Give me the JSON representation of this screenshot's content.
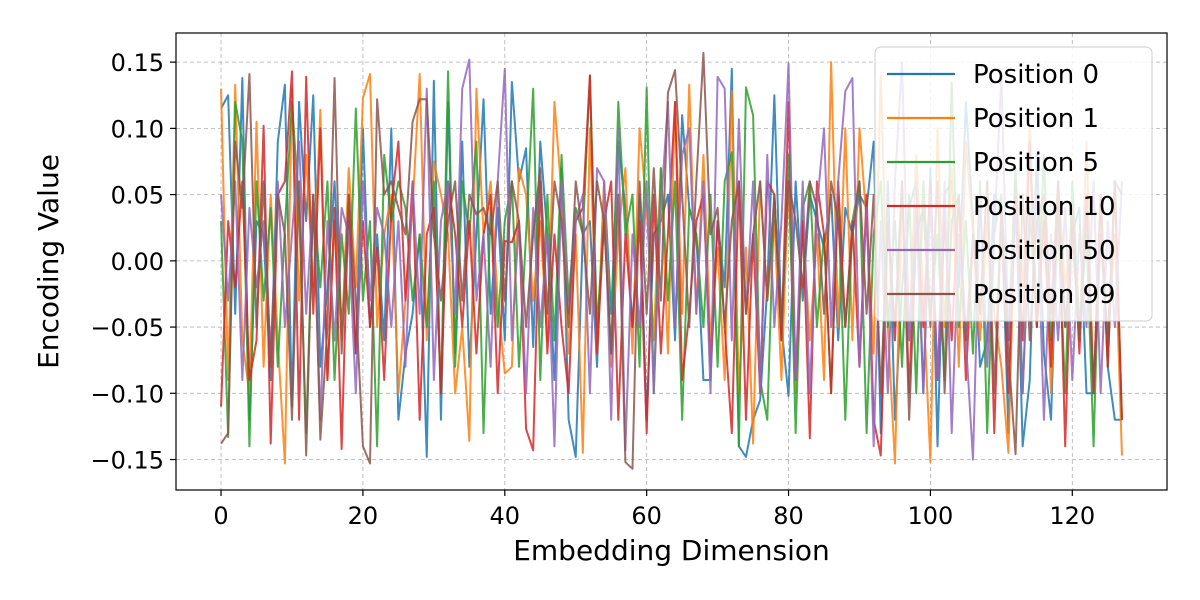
{
  "chart_data": {
    "type": "line",
    "title": "",
    "xlabel": "Embedding Dimension",
    "ylabel": "Encoding Value",
    "xlim": [
      -6.35,
      133.35
    ],
    "ylim": [
      -0.173,
      0.172
    ],
    "xticks": [
      0,
      20,
      40,
      60,
      80,
      100,
      120
    ],
    "yticks": [
      -0.15,
      -0.1,
      -0.05,
      0.0,
      0.05,
      0.1,
      0.15
    ],
    "ytick_labels": [
      "−0.15",
      "−0.10",
      "−0.05",
      "0.00",
      "0.05",
      "0.10",
      "0.15"
    ],
    "grid": true,
    "legend_position": "top-right",
    "series": [
      {
        "name": "Position 0",
        "color": "#1f77b4",
        "values": [
          0.115,
          0.125,
          -0.04,
          0.138,
          -0.12,
          0.03,
          0.02,
          -0.09,
          0.09,
          0.133,
          -0.11,
          0.12,
          0.03,
          0.125,
          -0.08,
          -0.02,
          0.06,
          -0.05,
          0.03,
          -0.07,
          0.1,
          -0.05,
          0.02,
          -0.06,
          0.1,
          -0.12,
          -0.07,
          -0.04,
          0.02,
          -0.148,
          0.136,
          -0.12,
          0.12,
          -0.07,
          0.09,
          -0.08,
          0.02,
          0.122,
          -0.04,
          0.04,
          -0.06,
          0.135,
          0.06,
          0.085,
          -0.065,
          0.09,
          0.02,
          -0.09,
          0.07,
          -0.12,
          -0.148,
          0.02,
          0.03,
          -0.08,
          0.06,
          -0.04,
          0.09,
          0.04,
          -0.05,
          0.05,
          -0.12,
          0.02,
          0.03,
          0.05,
          -0.06,
          0.11,
          0.04,
          0.02,
          -0.09,
          -0.09,
          0.03,
          -0.02,
          0.145,
          -0.14,
          -0.148,
          -0.12,
          -0.105,
          -0.02,
          0.125,
          -0.05,
          -0.102,
          0.06,
          -0.03,
          0.05,
          0.03,
          0.01,
          0.05,
          -0.06,
          0.04,
          0.02,
          0.05,
          0.04,
          0.09,
          -0.13,
          0.06,
          -0.12,
          -0.02,
          0.04,
          0.06,
          -0.1,
          0.07,
          -0.14,
          0.05,
          0.06,
          -0.02,
          0.12,
          0.03,
          -0.08,
          -0.06,
          0.05,
          0.04,
          -0.13,
          0.06,
          -0.14,
          -0.09,
          0.08,
          -0.07,
          -0.12,
          0.05,
          -0.05,
          0.02,
          0.04,
          -0.1,
          -0.1,
          0.05,
          -0.08,
          -0.12,
          -0.12
        ]
      },
      {
        "name": "Position 1",
        "color": "#ff7f0e",
        "values": [
          0.13,
          -0.09,
          0.133,
          -0.06,
          -0.1,
          0.105,
          -0.08,
          0.05,
          -0.06,
          -0.153,
          0.13,
          -0.03,
          0.08,
          -0.02,
          0.114,
          -0.09,
          0.03,
          -0.06,
          0.07,
          -0.02,
          0.123,
          0.141,
          -0.05,
          0.02,
          0.05,
          -0.1,
          -0.03,
          0.04,
          0.141,
          -0.06,
          0.075,
          0.05,
          0.02,
          -0.1,
          -0.05,
          -0.136,
          0.13,
          0.02,
          0.06,
          -0.03,
          -0.085,
          -0.08,
          0.07,
          0.05,
          -0.03,
          0.03,
          -0.06,
          0.12,
          0.05,
          -0.07,
          0.02,
          -0.145,
          0.1,
          -0.07,
          0.06,
          -0.08,
          0.02,
          0.07,
          -0.07,
          0.1,
          0.04,
          -0.06,
          0.07,
          -0.07,
          0.12,
          -0.04,
          0.133,
          -0.04,
          0.08,
          -0.06,
          0.01,
          -0.09,
          0.128,
          -0.1,
          0.01,
          -0.138,
          0.06,
          -0.03,
          0.03,
          -0.09,
          0.06,
          -0.1,
          0.03,
          -0.06,
          0.02,
          -0.09,
          0.15,
          -0.05,
          0.1,
          -0.06,
          0.1,
          0.03,
          -0.07,
          0.14,
          -0.05,
          -0.153,
          0.05,
          -0.06,
          0.08,
          -0.03,
          -0.152,
          0.1,
          -0.05,
          0.07,
          -0.08,
          0.09,
          0.02,
          -0.06,
          0.03,
          -0.04,
          -0.08,
          -0.145,
          0.06,
          -0.02,
          0.1,
          -0.05,
          0.04,
          -0.1,
          0.06,
          -0.02,
          0.03,
          -0.06,
          0.09,
          -0.1,
          0.02,
          -0.06,
          0.02,
          -0.147
        ]
      },
      {
        "name": "Position 5",
        "color": "#2ca02c",
        "values": [
          0.03,
          -0.133,
          0.12,
          0.09,
          -0.14,
          0.06,
          -0.03,
          0.04,
          -0.08,
          0.025,
          0.12,
          0.04,
          -0.13,
          0.05,
          -0.02,
          0.06,
          -0.09,
          0.02,
          -0.04,
          0.115,
          -0.03,
          0.03,
          -0.14,
          0.08,
          0.03,
          0.06,
          0.04,
          -0.03,
          0.02,
          -0.05,
          0.06,
          -0.1,
          0.143,
          -0.08,
          0.06,
          0.02,
          0.09,
          -0.13,
          0.04,
          -0.05,
          0.03,
          0.06,
          -0.08,
          0.02,
          0.13,
          -0.09,
          0.05,
          -0.06,
          0.08,
          -0.03,
          0.04,
          0.02,
          0.14,
          -0.05,
          0.03,
          -0.07,
          0.12,
          0.02,
          0.05,
          -0.08,
          0.131,
          -0.1,
          0.07,
          -0.03,
          0.06,
          -0.12,
          0.04,
          0.02,
          -0.05,
          0.05,
          -0.08,
          0.06,
          0.082,
          -0.14,
          0.131,
          0.11,
          -0.09,
          -0.12,
          0.05,
          -0.06,
          0.08,
          -0.13,
          0.04,
          0.06,
          -0.05,
          0.02,
          -0.1,
          0.05,
          -0.12,
          0.03,
          0.06,
          -0.13,
          0.02,
          0.06,
          -0.05,
          0.03,
          -0.08,
          0.05,
          -0.1,
          0.06,
          -0.04,
          0.02,
          -0.09,
          0.135,
          -0.05,
          0.03,
          -0.07,
          0.06,
          -0.13,
          0.02,
          0.05,
          -0.06,
          0.07,
          -0.1,
          0.04,
          -0.05,
          0.08,
          -0.06,
          0.03,
          -0.1,
          0.06,
          -0.05,
          0.02,
          -0.14,
          0.05,
          -0.08,
          0.06,
          -0.12
        ]
      },
      {
        "name": "Position 10",
        "color": "#d62728",
        "values": [
          -0.11,
          0.03,
          -0.02,
          0.06,
          -0.09,
          -0.06,
          0.102,
          -0.138,
          0.05,
          0.06,
          0.143,
          -0.12,
          0.139,
          -0.04,
          0.1,
          -0.09,
          0.04,
          -0.142,
          0.05,
          -0.07,
          0.03,
          -0.05,
          0.01,
          -0.09,
          0.04,
          0.09,
          -0.03,
          0.06,
          -0.12,
          0.02,
          0.04,
          -0.1,
          0.06,
          0.02,
          -0.05,
          0.03,
          -0.07,
          0.02,
          0.05,
          -0.1,
          0.015,
          0.014,
          0.03,
          -0.127,
          -0.143,
          0.06,
          -0.07,
          0.02,
          -0.05,
          -0.1,
          0.03,
          0.04,
          0.14,
          -0.07,
          0.03,
          0.06,
          -0.12,
          0.02,
          -0.05,
          0.03,
          -0.13,
          0.05,
          -0.07,
          0.02,
          0.12,
          -0.09,
          -0.04,
          0.03,
          0.05,
          -0.08,
          0.03,
          -0.05,
          -0.13,
          0.06,
          -0.12,
          0.02,
          -0.1,
          0.06,
          0.05,
          -0.06,
          0.12,
          -0.09,
          0.03,
          -0.134,
          0.06,
          0.02,
          -0.1,
          0.06,
          -0.05,
          0.03,
          -0.08,
          0.05,
          -0.12,
          -0.147,
          0.03,
          -0.06,
          0.06,
          -0.1,
          0.04,
          -0.05,
          0.06,
          -0.09,
          0.03,
          -0.06,
          0.05,
          -0.09,
          0.02,
          -0.04,
          0.06,
          -0.13,
          0.04,
          -0.1,
          0.05,
          -0.06,
          0.09,
          -0.05,
          0.03,
          -0.08,
          0.06,
          -0.14,
          0.04,
          -0.07,
          0.05,
          -0.1,
          0.05,
          -0.08,
          0.06,
          -0.12
        ]
      },
      {
        "name": "Position 50",
        "color": "#9467bd",
        "values": [
          0.05,
          -0.03,
          0.06,
          -0.09,
          0.04,
          -0.02,
          0.03,
          -0.07,
          0.06,
          -0.05,
          0.02,
          0.09,
          -0.04,
          0.05,
          -0.12,
          0.03,
          -0.06,
          0.04,
          0.02,
          -0.1,
          0.06,
          -0.03,
          0.04,
          0.02,
          -0.05,
          0.03,
          -0.08,
          0.06,
          -0.04,
          0.13,
          -0.09,
          0.03,
          0.06,
          -0.04,
          0.13,
          0.152,
          -0.03,
          0.02,
          -0.08,
          0.06,
          0.145,
          -0.06,
          0.03,
          -0.1,
          0.04,
          -0.05,
          0.02,
          -0.14,
          0.06,
          -0.04,
          0.03,
          0.05,
          -0.1,
          0.07,
          0.06,
          -0.12,
          0.1,
          -0.143,
          0.02,
          -0.05,
          0.06,
          -0.1,
          0.04,
          0.12,
          -0.05,
          0.08,
          0.1,
          -0.04,
          0.06,
          -0.1,
          0.139,
          0.13,
          -0.06,
          0.107,
          -0.04,
          0.06,
          -0.1,
          0.08,
          -0.05,
          0.03,
          0.149,
          -0.09,
          0.06,
          -0.1,
          0.04,
          0.1,
          -0.05,
          0.06,
          0.128,
          0.138,
          -0.08,
          0.04,
          -0.14,
          0.03,
          -0.1,
          0.06,
          0.15,
          -0.06,
          0.04,
          -0.1,
          0.05,
          -0.09,
          0.06,
          -0.13,
          0.02,
          -0.06,
          -0.15,
          0.05,
          -0.08,
          0.02,
          0.14,
          -0.06,
          0.04,
          -0.1,
          0.03,
          0.05,
          -0.12,
          0.02,
          -0.06,
          0.04,
          -0.09,
          0.02,
          -0.05,
          0.06,
          -0.1,
          0.03,
          -0.05,
          0.06
        ]
      },
      {
        "name": "Position 99",
        "color": "#8c564b",
        "values": [
          -0.138,
          -0.13,
          0.09,
          0.04,
          0.141,
          -0.05,
          0.06,
          -0.08,
          0.05,
          0.02,
          -0.12,
          0.06,
          -0.147,
          0.05,
          -0.135,
          -0.05,
          0.138,
          -0.07,
          0.05,
          -0.03,
          -0.14,
          -0.153,
          0.122,
          0.05,
          0.06,
          0.04,
          0.02,
          0.105,
          0.122,
          0.122,
          0.02,
          -0.03,
          0.03,
          0.06,
          -0.03,
          0.05,
          0.035,
          0.04,
          0.02,
          0.06,
          -0.03,
          0.06,
          0.03,
          -0.05,
          0.02,
          0.07,
          -0.04,
          0.06,
          0.03,
          -0.05,
          0.06,
          0.02,
          -0.04,
          0.06,
          0.03,
          -0.07,
          0.05,
          -0.152,
          -0.157,
          0.06,
          -0.04,
          0.07,
          -0.03,
          0.127,
          0.144,
          0.05,
          -0.05,
          0.06,
          0.157,
          0.02,
          0.04,
          -0.05,
          0.03,
          0.06,
          -0.04,
          0.02,
          0.06,
          -0.03,
          0.05,
          -0.05,
          0.06,
          0.03,
          -0.02,
          0.06,
          0.04,
          -0.04,
          0.06,
          0.03,
          -0.05,
          0.02,
          0.06,
          -0.04,
          0.05,
          -0.1,
          0.03,
          -0.05,
          0.06,
          -0.12,
          0.02,
          0.04,
          -0.05,
          0.06,
          -0.1,
          0.03,
          0.05,
          -0.06,
          0.02,
          -0.04,
          0.06,
          -0.1,
          0.04,
          -0.07,
          -0.146,
          0.05,
          -0.06,
          0.03,
          0.05,
          -0.04,
          0.06,
          -0.05,
          0.02,
          -0.06,
          0.04,
          -0.1,
          0.02,
          -0.06,
          0.06,
          0.05
        ]
      }
    ]
  }
}
